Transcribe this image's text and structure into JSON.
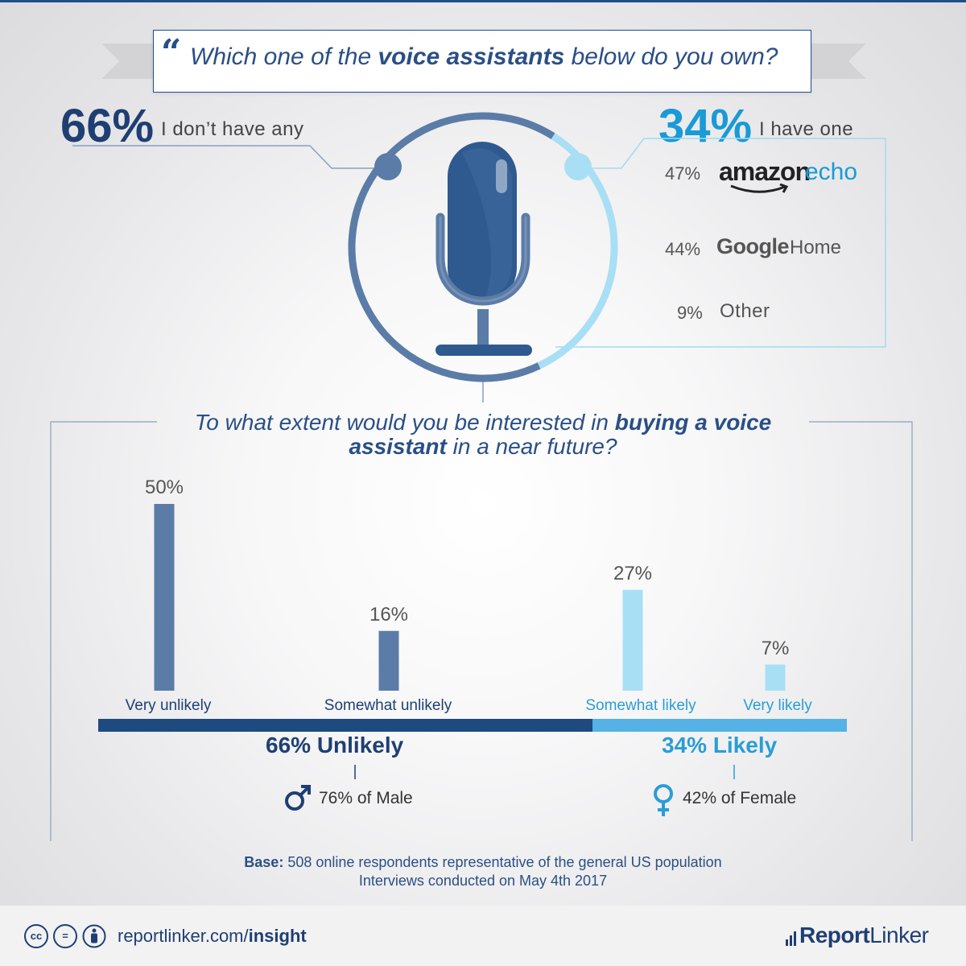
{
  "question1": {
    "quote_glyph": "“",
    "text_before": "Which one of the ",
    "text_bold": "voice assistants",
    "text_after": " below do you own?"
  },
  "ownership": {
    "none": {
      "pct": "66%",
      "label": "I don’t have any"
    },
    "one": {
      "pct": "34%",
      "label": "I have one"
    },
    "brands": [
      {
        "pct": "47%",
        "name_bold": "amazon",
        "name_rest": "echo"
      },
      {
        "pct": "44%",
        "name_bold": "Google",
        "name_rest": "Home"
      },
      {
        "pct": "9%",
        "name": "Other"
      }
    ]
  },
  "question2": {
    "p1": "To what extent would you be interested in ",
    "b1": "buying a voice",
    "b2": "assistant",
    "p2": " in a near future?"
  },
  "chart_data": {
    "type": "bar",
    "title": "To what extent would you be interested in buying a voice assistant in a near future?",
    "categories": [
      "Very unlikely",
      "Somewhat unlikely",
      "Somewhat likely",
      "Very likely"
    ],
    "values": [
      50,
      16,
      27,
      7
    ],
    "value_labels": [
      "50%",
      "16%",
      "27%",
      "7%"
    ],
    "groups": [
      {
        "label": "66% Unlikely",
        "value": 66,
        "categories": [
          "Very unlikely",
          "Somewhat unlikely"
        ],
        "note": "76% of Male"
      },
      {
        "label": "34% Likely",
        "value": 34,
        "categories": [
          "Somewhat likely",
          "Very likely"
        ],
        "note": "42% of Female"
      }
    ],
    "colors": {
      "unlikely": "#5b7ca7",
      "likely": "#a9dff5",
      "unlikely_band": "#1f4a80",
      "likely_band": "#55b2e6"
    },
    "ylim": [
      0,
      50
    ],
    "grid": false
  },
  "ownership_chart": {
    "type": "pie",
    "slices": [
      {
        "label": "I don’t have any",
        "value": 66
      },
      {
        "label": "I have one",
        "value": 34
      }
    ],
    "colors": [
      "#5b7ca7",
      "#a9dff5"
    ]
  },
  "base": {
    "label": "Base:",
    "line1": " 508 online respondents representative of the general US population",
    "line2": "Interviews conducted on May 4th 2017"
  },
  "footer": {
    "url_plain": "reportlinker.com/",
    "url_bold": "insight",
    "cc_glyphs": [
      "cc",
      "=",
      "person"
    ],
    "logo_bold": "Report",
    "logo_rest": "Linker"
  },
  "colors": {
    "dark_blue": "#1f3f73",
    "mid_blue": "#2a4f86",
    "light_blue": "#2a9dd6",
    "pale_blue": "#a9dff5"
  },
  "icons": [
    "quote-icon",
    "microphone-icon",
    "male-icon",
    "female-icon",
    "cc-icon",
    "equal-icon",
    "attribution-icon",
    "reportlinker-logo"
  ]
}
